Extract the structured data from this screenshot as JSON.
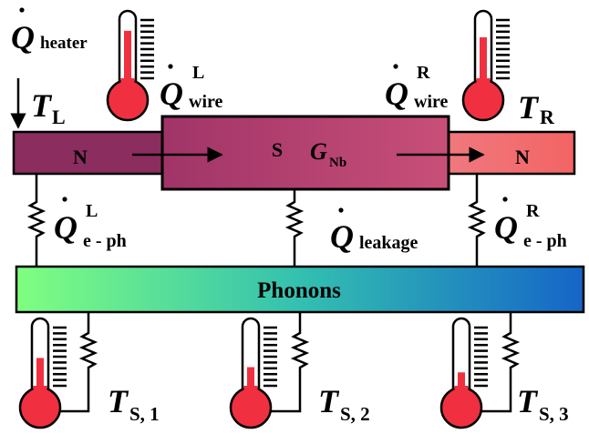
{
  "diagram": {
    "symbols": {
      "heat_flow": "Q",
      "temperature": "T"
    },
    "heater": {
      "sub": "heater"
    },
    "wire_left": {
      "sub": "wire",
      "sup": "L"
    },
    "wire_right": {
      "sub": "wire",
      "sup": "R"
    },
    "temp_left": {
      "sub": "L"
    },
    "temp_right": {
      "sub": "R"
    },
    "normal_left": "N",
    "normal_right": "N",
    "superconductor": "S",
    "conductance": {
      "symbol": "G",
      "sub": "Nb"
    },
    "eph_left": {
      "sub": "e - ph",
      "sup": "L"
    },
    "eph_right": {
      "sub": "e - ph",
      "sup": "R"
    },
    "leakage": {
      "sub": "leakage"
    },
    "phonons": "Phonons",
    "sensors": [
      {
        "sub": "S, 1",
        "level": 0.48
      },
      {
        "sub": "S, 2",
        "level": 0.34
      },
      {
        "sub": "S, 3",
        "level": 0.26
      }
    ],
    "top_thermometers": [
      {
        "level": 0.78
      },
      {
        "level": 0.68
      }
    ],
    "colors": {
      "normal_left": "#8b2d5f",
      "normal_right": "#f26b6b",
      "superconductor": "#a33d6e",
      "phonons_start": "#7fff7f",
      "phonons_end": "#1060c8",
      "thermometer_red": "#f03040"
    }
  }
}
